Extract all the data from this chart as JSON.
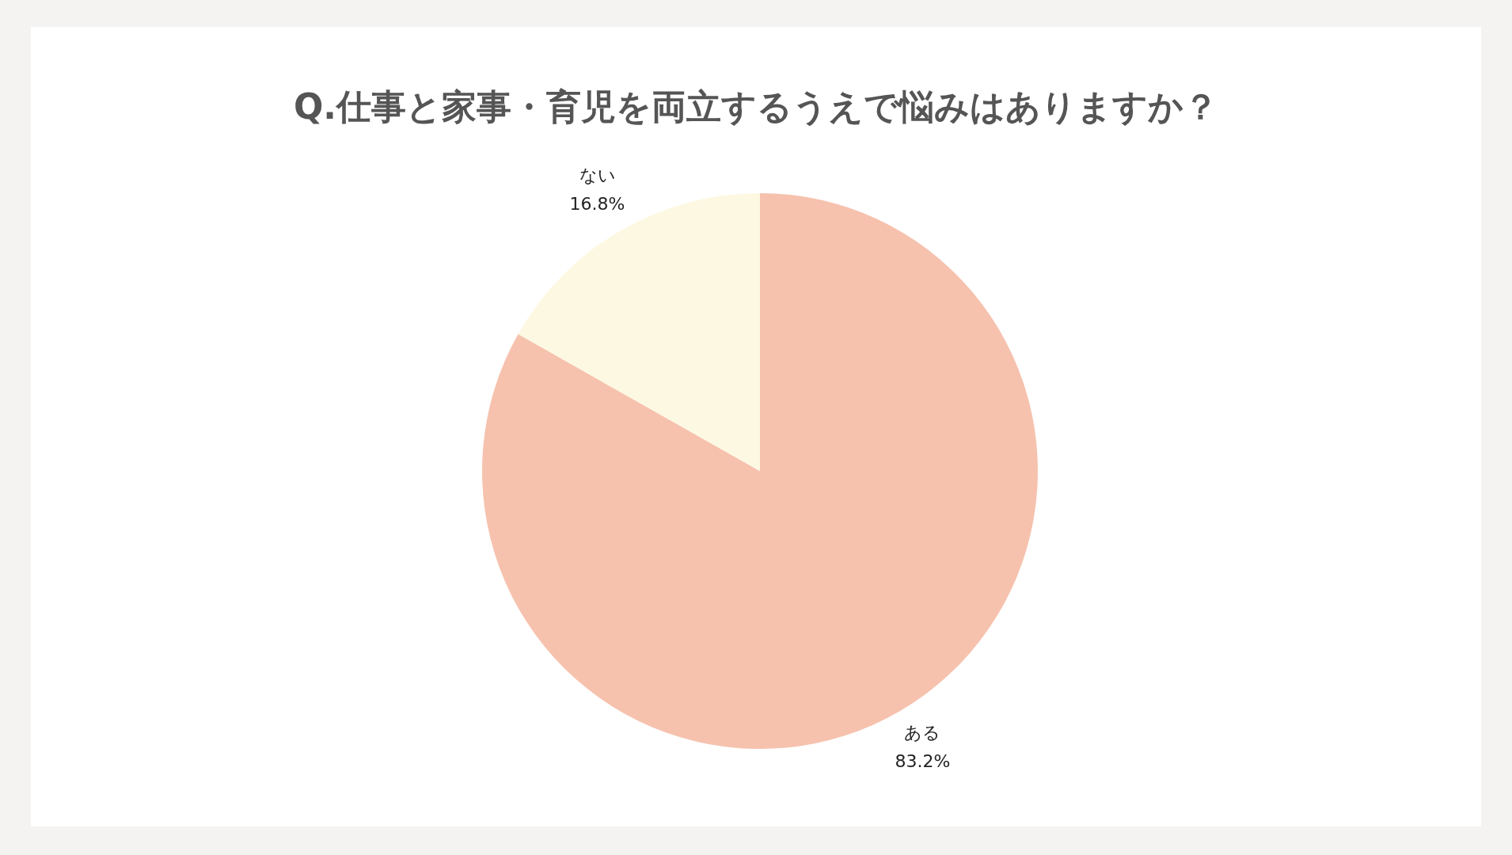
{
  "chart_data": {
    "type": "pie",
    "title": "Q.仕事と家事・育児を両立するうえで悩みはありますか？",
    "categories": [
      "ある",
      "ない"
    ],
    "values": [
      83.2,
      16.8
    ],
    "colors": [
      "#f6c2ae",
      "#fdf8e2"
    ],
    "value_labels": [
      "83.2%",
      "16.8%"
    ]
  }
}
